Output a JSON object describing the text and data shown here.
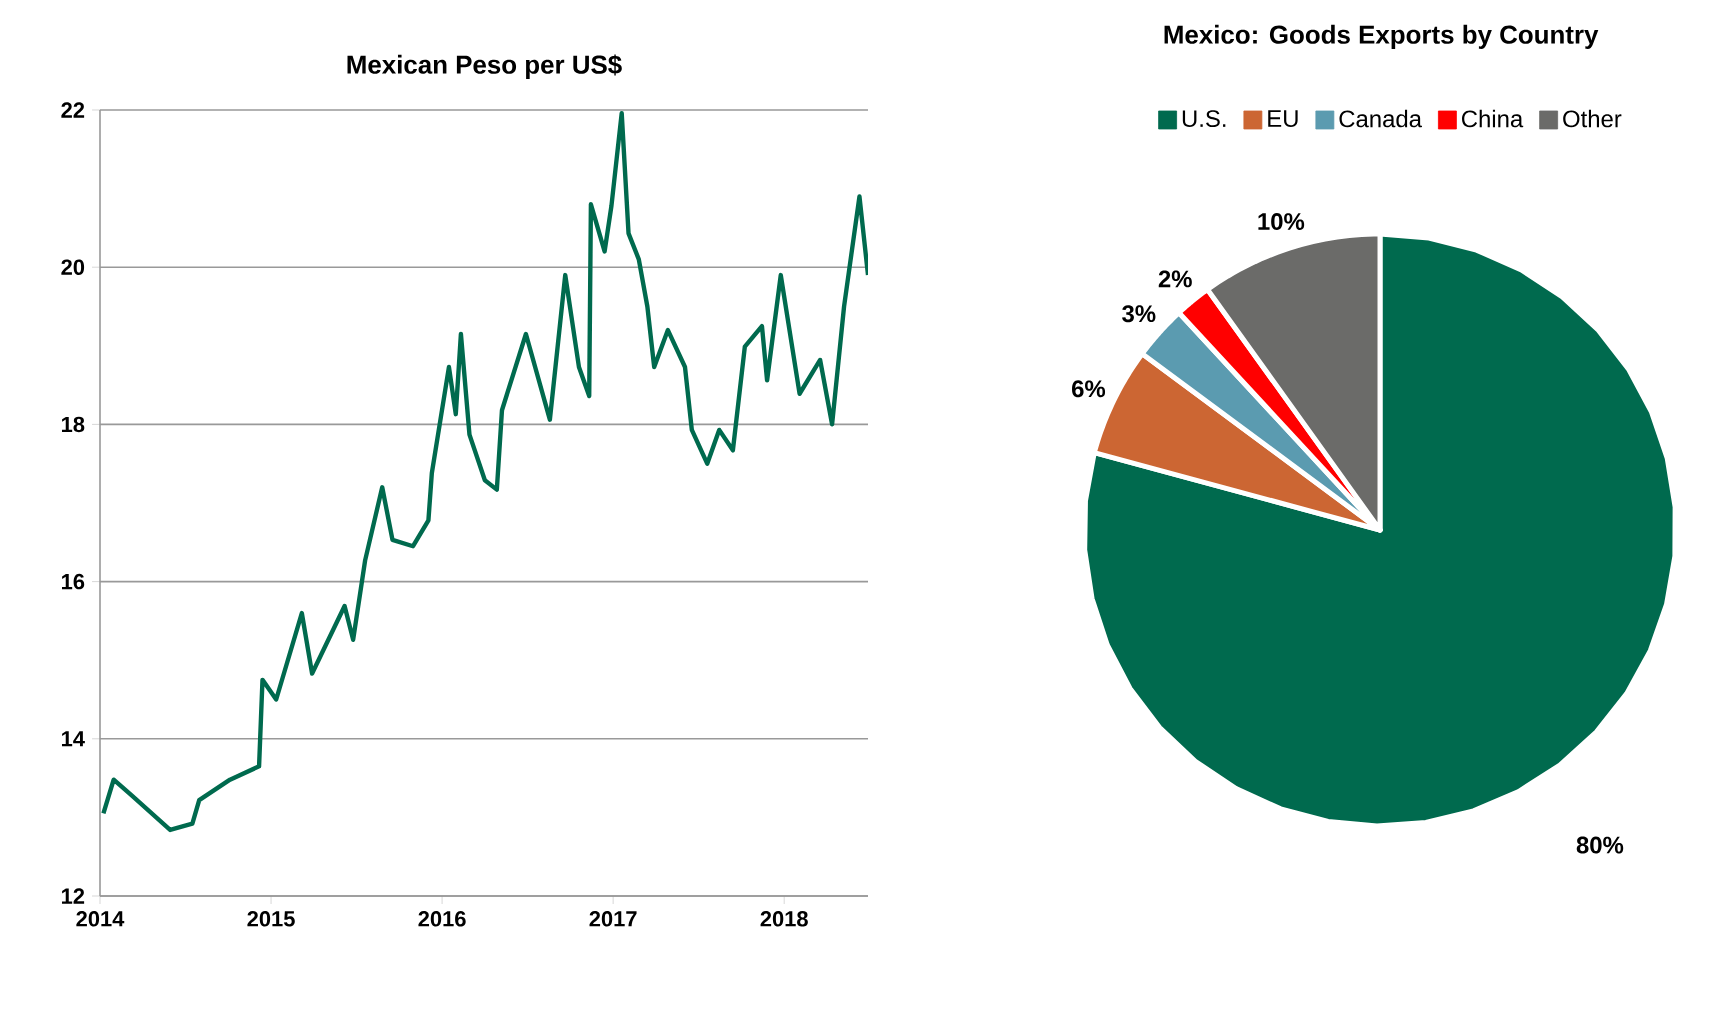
{
  "chart_data": [
    {
      "type": "line",
      "title": "Mexican Peso per US$",
      "series": [
        {
          "color": "#006a4e",
          "x": [
            2014.02,
            2014.08,
            2014.19,
            2014.41,
            2014.54,
            2014.58,
            2014.76,
            2014.93,
            2014.95,
            2015.03,
            2015.18,
            2015.24,
            2015.43,
            2015.48,
            2015.55,
            2015.65,
            2015.71,
            2015.83,
            2015.92,
            2015.94,
            2016.04,
            2016.08,
            2016.11,
            2016.16,
            2016.25,
            2016.32,
            2016.35,
            2016.49,
            2016.63,
            2016.72,
            2016.8,
            2016.86,
            2016.87,
            2016.95,
            2016.99,
            2017.05,
            2017.09,
            2017.15,
            2017.2,
            2017.24,
            2017.32,
            2017.42,
            2017.46,
            2017.55,
            2017.62,
            2017.7,
            2017.77,
            2017.87,
            2017.9,
            2017.98,
            2018.09,
            2018.21,
            2018.28,
            2018.35,
            2018.44,
            2018.49
          ],
          "values": [
            13.05,
            13.48,
            13.27,
            12.84,
            12.92,
            13.22,
            13.48,
            13.65,
            14.75,
            14.5,
            15.6,
            14.83,
            15.69,
            15.26,
            16.27,
            17.2,
            16.53,
            16.45,
            16.78,
            17.38,
            18.73,
            18.13,
            19.15,
            17.87,
            17.29,
            17.17,
            18.18,
            19.15,
            18.06,
            19.9,
            18.73,
            18.36,
            20.8,
            20.2,
            20.78,
            21.96,
            20.43,
            20.1,
            19.5,
            18.73,
            19.2,
            18.73,
            17.93,
            17.5,
            17.93,
            17.67,
            18.99,
            19.25,
            18.56,
            19.9,
            18.39,
            18.82,
            18.0,
            19.5,
            20.9,
            19.9
          ]
        }
      ],
      "xlim": [
        2014,
        2018.49
      ],
      "xticks": [
        2014,
        2015,
        2016,
        2017,
        2018
      ],
      "ylim": [
        12,
        22
      ],
      "yticks": [
        12,
        14,
        16,
        18,
        20,
        22
      ],
      "grid": "y",
      "line_style": "solid"
    },
    {
      "type": "pie",
      "title": "Mexico: Goods Exports by Country",
      "categories": [
        "U.S.",
        "EU",
        "Canada",
        "China",
        "Other"
      ],
      "values": [
        80,
        6,
        3,
        2,
        10
      ],
      "value_labels": [
        "80%",
        "6%",
        "3%",
        "2%",
        "10%"
      ],
      "colors": [
        "#006a4e",
        "#cc6633",
        "#5b9bb0",
        "#ff0000",
        "#6b6b69"
      ],
      "legend": "top"
    }
  ]
}
